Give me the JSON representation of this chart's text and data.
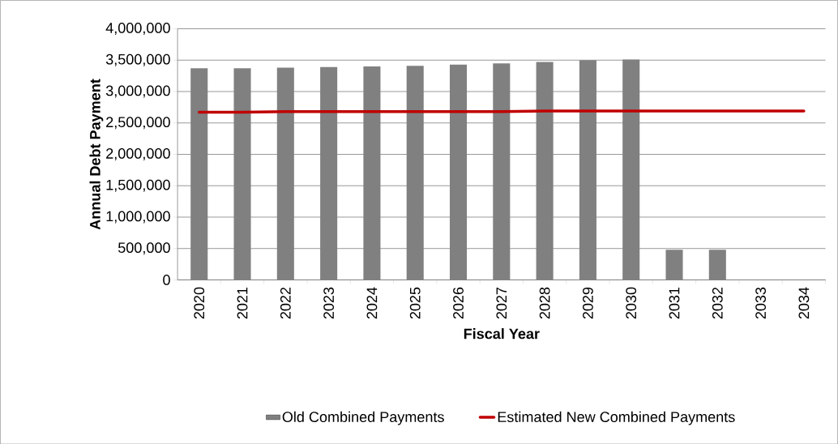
{
  "chart_data": {
    "type": "bar",
    "xlabel": "Fiscal Year",
    "ylabel": "Annual Debt Payment",
    "categories": [
      "2020",
      "2021",
      "2022",
      "2023",
      "2024",
      "2025",
      "2026",
      "2027",
      "2028",
      "2029",
      "2030",
      "2031",
      "2032",
      "2033",
      "2034"
    ],
    "series": [
      {
        "name": "Old Combined Payments",
        "color": "#808080",
        "values": [
          3370000,
          3370000,
          3380000,
          3390000,
          3400000,
          3410000,
          3430000,
          3450000,
          3470000,
          3500000,
          3510000,
          480000,
          480000,
          0,
          0
        ]
      },
      {
        "name": "Estimated New Combined Payments",
        "type": "line",
        "color": "#c00000",
        "values": [
          2670000,
          2670000,
          2680000,
          2680000,
          2680000,
          2680000,
          2680000,
          2680000,
          2690000,
          2690000,
          2690000,
          2690000,
          2690000,
          2690000,
          2690000
        ]
      }
    ],
    "ylim": [
      0,
      4000000
    ],
    "yticks": [
      {
        "value": 0,
        "label": "0"
      },
      {
        "value": 500000,
        "label": "500,000"
      },
      {
        "value": 1000000,
        "label": "1,000,000"
      },
      {
        "value": 1500000,
        "label": "1,500,000"
      },
      {
        "value": 2000000,
        "label": "2,000,000"
      },
      {
        "value": 2500000,
        "label": "2,500,000"
      },
      {
        "value": 3000000,
        "label": "3,000,000"
      },
      {
        "value": 3500000,
        "label": "3,500,000"
      },
      {
        "value": 4000000,
        "label": "4,000,000"
      }
    ],
    "grid": "y",
    "legend": "bottom"
  }
}
